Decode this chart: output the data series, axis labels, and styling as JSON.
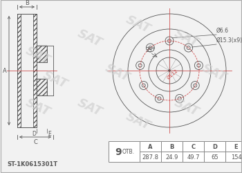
{
  "bg_color": "#f2f2f2",
  "part_number": "ST-1K0615301T",
  "holes_count": "9",
  "otb_label": "ОТВ.",
  "table_headers": [
    "A",
    "B",
    "C",
    "D",
    "E"
  ],
  "table_values": [
    "287.8",
    "24.9",
    "49.7",
    "65",
    "154"
  ],
  "annotation_d66": "Ø6.6",
  "annotation_d153": "Ø15.3(x9)",
  "annotation_angle": "35°",
  "annotation_hub": "Ø112",
  "draw_color": "#555555",
  "red_color": "#cc4444",
  "sat_color": "#d0d0d0",
  "table_border_color": "#888888",
  "white": "#ffffff"
}
